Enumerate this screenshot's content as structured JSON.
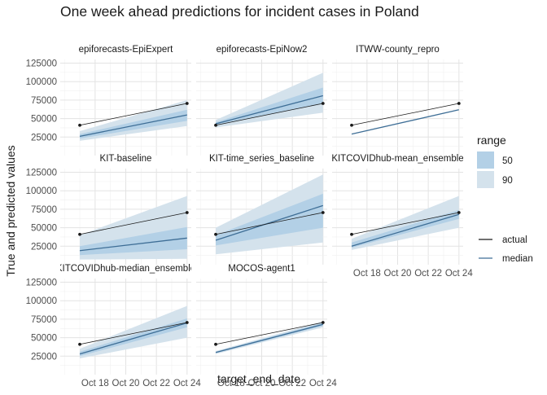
{
  "chart_data": {
    "type": "line",
    "title": "One week ahead predictions for incident cases in Poland",
    "xlabel": "target_end_date",
    "ylabel": "True and predicted values",
    "x_ticks": [
      "Oct 18",
      "Oct 20",
      "Oct 22",
      "Oct 24"
    ],
    "y_ticks": [
      "25000",
      "50000",
      "75000",
      "100000",
      "125000"
    ],
    "xlim": [
      "2020-10-16",
      "2020-10-24"
    ],
    "ylim": [
      0,
      130000
    ],
    "grid": true,
    "legend": {
      "position": "right",
      "range_title": "range",
      "range_items": [
        {
          "label": "50",
          "color": "#b3d0e6"
        },
        {
          "label": "90",
          "color": "#d4e2ec"
        }
      ],
      "line_items": [
        {
          "label": "actual",
          "color": "#1a1a1a"
        },
        {
          "label": "median",
          "color": "#3e6e96"
        }
      ]
    },
    "colors": {
      "actual": "#1a1a1a",
      "median": "#3e6e96",
      "band50": "#b3d0e6",
      "band90": "#d4e2ec",
      "strip_text": "#1a1a1a",
      "axis_text": "#4d4d4d"
    },
    "actual_x": [
      "2020-10-17",
      "2020-10-24"
    ],
    "forecast_x": [
      "2020-10-17",
      "2020-10-24"
    ],
    "panels": [
      {
        "name": "epiforecasts-EpiExpert",
        "actual": [
          41000,
          70500
        ],
        "median": [
          26000,
          55000
        ],
        "q50": {
          "lower": [
            23000,
            47000
          ],
          "upper": [
            29000,
            62000
          ]
        },
        "q90": {
          "lower": [
            20000,
            40000
          ],
          "upper": [
            33000,
            75000
          ]
        }
      },
      {
        "name": "epiforecasts-EpiNow2",
        "actual": [
          41000,
          70500
        ],
        "median": [
          43000,
          81000
        ],
        "q50": {
          "lower": [
            41000,
            70000
          ],
          "upper": [
            45000,
            92000
          ]
        },
        "q90": {
          "lower": [
            38000,
            58000
          ],
          "upper": [
            48000,
            112000
          ]
        }
      },
      {
        "name": "ITWW-county_repro",
        "actual": [
          41000,
          70500
        ],
        "median": [
          29000,
          62000
        ],
        "q50": {
          "lower": [
            29000,
            62000
          ],
          "upper": [
            29000,
            62000
          ]
        },
        "q90": {
          "lower": [
            29000,
            62000
          ],
          "upper": [
            29000,
            62000
          ]
        }
      },
      {
        "name": "KIT-baseline",
        "actual": [
          41000,
          70500
        ],
        "median": [
          19000,
          36000
        ],
        "q50": {
          "lower": [
            13000,
            21000
          ],
          "upper": [
            25000,
            51000
          ]
        },
        "q90": {
          "lower": [
            7000,
            8000
          ],
          "upper": [
            40000,
            93000
          ]
        }
      },
      {
        "name": "KIT-time_series_baseline",
        "actual": [
          41000,
          70500
        ],
        "median": [
          33000,
          80000
        ],
        "q50": {
          "lower": [
            26000,
            50000
          ],
          "upper": [
            40000,
            96000
          ]
        },
        "q90": {
          "lower": [
            14000,
            30000
          ],
          "upper": [
            50000,
            122000
          ]
        }
      },
      {
        "name": "KITCOVIDhub-mean_ensemble",
        "actual": [
          41000,
          70500
        ],
        "median": [
          25000,
          68000
        ],
        "q50": {
          "lower": [
            23000,
            62000
          ],
          "upper": [
            30000,
            74000
          ]
        },
        "q90": {
          "lower": [
            20000,
            50000
          ],
          "upper": [
            35000,
            93000
          ]
        }
      },
      {
        "name": "KITCOVIDhub-median_ensemble",
        "actual": [
          41000,
          70500
        ],
        "median": [
          28000,
          70000
        ],
        "q50": {
          "lower": [
            25000,
            64000
          ],
          "upper": [
            31000,
            76000
          ]
        },
        "q90": {
          "lower": [
            22000,
            50000
          ],
          "upper": [
            35000,
            93000
          ]
        }
      },
      {
        "name": "MOCOS-agent1",
        "actual": [
          41000,
          70500
        ],
        "median": [
          30000,
          68000
        ],
        "q50": {
          "lower": [
            29000,
            66000
          ],
          "upper": [
            31000,
            70000
          ]
        },
        "q90": {
          "lower": [
            28000,
            64000
          ],
          "upper": [
            32000,
            72000
          ]
        }
      }
    ]
  }
}
